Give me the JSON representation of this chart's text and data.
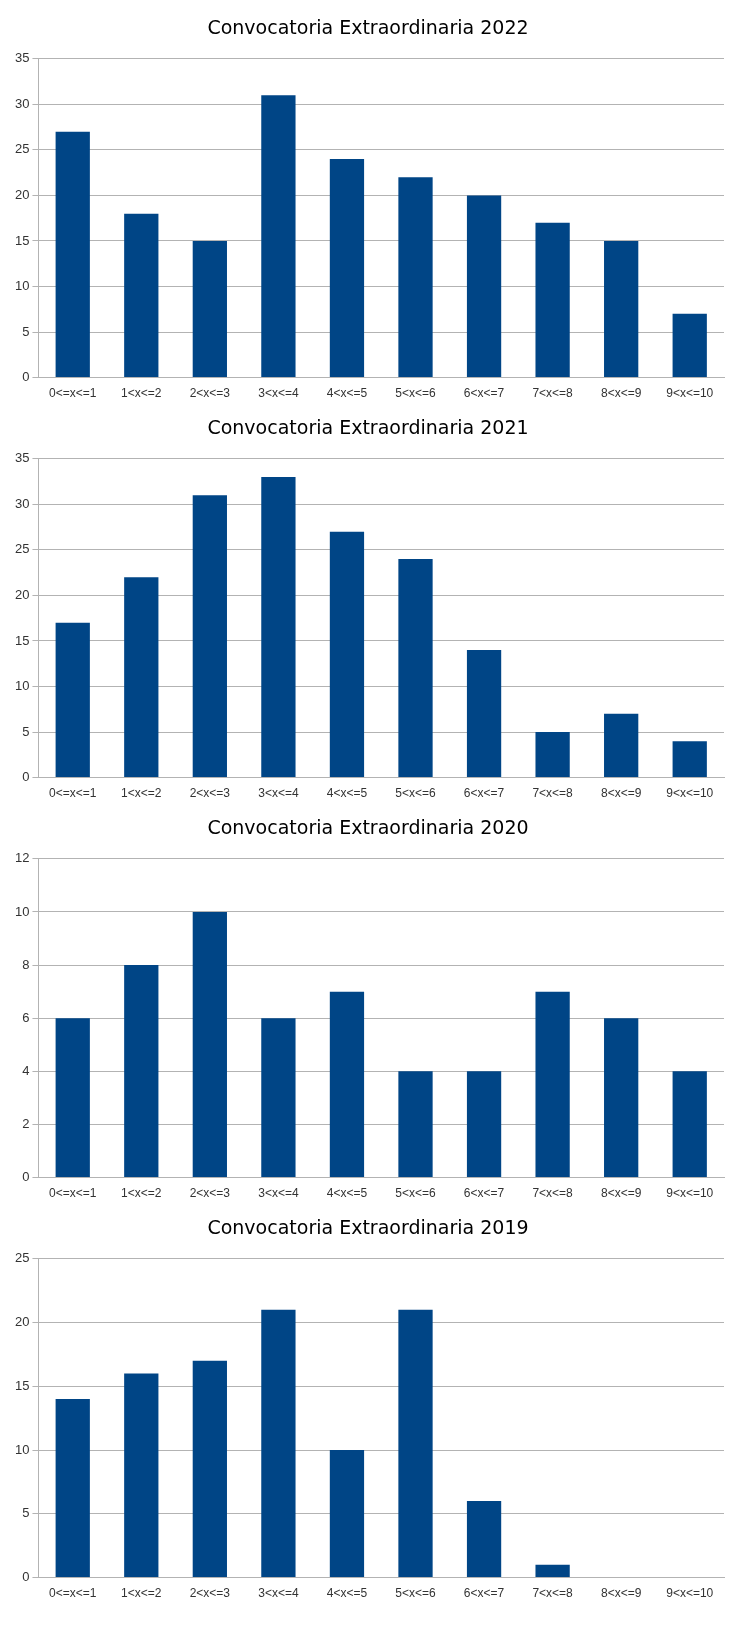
{
  "chart_data": [
    {
      "type": "bar",
      "title": "Convocatoria Extraordinaria 2022",
      "categories": [
        "0<=x<=1",
        "1<x<=2",
        "2<x<=3",
        "3<x<=4",
        "4<x<=5",
        "5<x<=6",
        "6<x<=7",
        "7<x<=8",
        "8<x<=9",
        "9<x<=10"
      ],
      "values": [
        27,
        18,
        15,
        31,
        24,
        22,
        20,
        17,
        15,
        7
      ],
      "color": "#004586",
      "ylim": [
        0,
        35
      ],
      "yticks": [
        0,
        5,
        10,
        15,
        20,
        25,
        30,
        35
      ],
      "grid": "y"
    },
    {
      "type": "bar",
      "title": "Convocatoria Extraordinaria 2021",
      "categories": [
        "0<=x<=1",
        "1<x<=2",
        "2<x<=3",
        "3<x<=4",
        "4<x<=5",
        "5<x<=6",
        "6<x<=7",
        "7<x<=8",
        "8<x<=9",
        "9<x<=10"
      ],
      "values": [
        17,
        22,
        31,
        33,
        27,
        24,
        14,
        5,
        7,
        4
      ],
      "color": "#004586",
      "ylim": [
        0,
        35
      ],
      "yticks": [
        0,
        5,
        10,
        15,
        20,
        25,
        30,
        35
      ],
      "grid": "y"
    },
    {
      "type": "bar",
      "title": "Convocatoria Extraordinaria 2020",
      "categories": [
        "0<=x<=1",
        "1<x<=2",
        "2<x<=3",
        "3<x<=4",
        "4<x<=5",
        "5<x<=6",
        "6<x<=7",
        "7<x<=8",
        "8<x<=9",
        "9<x<=10"
      ],
      "values": [
        6,
        8,
        10,
        6,
        7,
        4,
        4,
        7,
        6,
        4
      ],
      "color": "#004586",
      "ylim": [
        0,
        12
      ],
      "yticks": [
        0,
        2,
        4,
        6,
        8,
        10,
        12
      ],
      "grid": "y"
    },
    {
      "type": "bar",
      "title": "Convocatoria Extraordinaria 2019",
      "categories": [
        "0<=x<=1",
        "1<x<=2",
        "2<x<=3",
        "3<x<=4",
        "4<x<=5",
        "5<x<=6",
        "6<x<=7",
        "7<x<=8",
        "8<x<=9",
        "9<x<=10"
      ],
      "values": [
        14,
        16,
        17,
        21,
        10,
        21,
        6,
        1,
        0,
        0
      ],
      "color": "#004586",
      "ylim": [
        0,
        25
      ],
      "yticks": [
        0,
        5,
        10,
        15,
        20,
        25
      ],
      "grid": "y"
    }
  ]
}
